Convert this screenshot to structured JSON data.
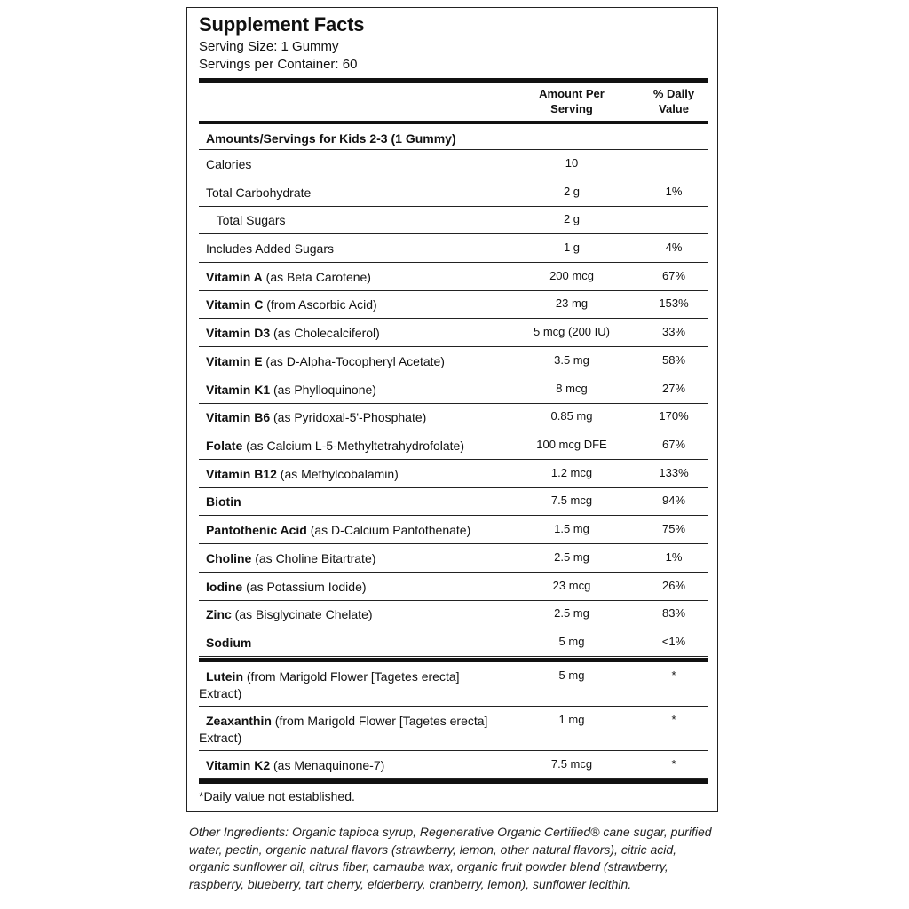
{
  "title": "Supplement Facts",
  "serving_size": "Serving Size: 1 Gummy",
  "servings_per_container": "Servings per Container: 60",
  "header": {
    "amount_line1": "Amount Per",
    "amount_line2": "Serving",
    "dv_line1": "% Daily",
    "dv_line2": "Value"
  },
  "section_heading": "Amounts/Servings for Kids 2-3 (1 Gummy)",
  "rows": [
    {
      "bold": "",
      "name": "Calories",
      "amount": "10",
      "dv": ""
    },
    {
      "bold": "",
      "name": "Total Carbohydrate",
      "amount": "2 g",
      "dv": "1%"
    },
    {
      "bold": "",
      "name": "   Total Sugars",
      "amount": "2 g",
      "dv": ""
    },
    {
      "bold": "",
      "name": "Includes Added Sugars",
      "amount": "1 g",
      "dv": "4%"
    },
    {
      "bold": "Vitamin A",
      "name": " (as Beta Carotene)",
      "amount": "200 mcg",
      "dv": "67%"
    },
    {
      "bold": "Vitamin C",
      "name": " (from Ascorbic Acid)",
      "amount": "23 mg",
      "dv": "153%"
    },
    {
      "bold": "Vitamin D3",
      "name": " (as Cholecalciferol)",
      "amount": "5 mcg (200 IU)",
      "dv": "33%"
    },
    {
      "bold": "Vitamin E",
      "name": " (as D-Alpha-Tocopheryl Acetate)",
      "amount": "3.5 mg",
      "dv": "58%"
    },
    {
      "bold": "Vitamin K1",
      "name": " (as Phylloquinone)",
      "amount": "8 mcg",
      "dv": "27%"
    },
    {
      "bold": "Vitamin B6",
      "name": " (as Pyridoxal-5'-Phosphate)",
      "amount": "0.85 mg",
      "dv": "170%"
    },
    {
      "bold": "Folate",
      "name": " (as Calcium L-5-Methyltetrahydrofolate)",
      "amount": "100 mcg DFE",
      "dv": "67%"
    },
    {
      "bold": "Vitamin B12",
      "name": " (as Methylcobalamin)",
      "amount": "1.2 mcg",
      "dv": "133%"
    },
    {
      "bold": "Biotin",
      "name": "",
      "amount": "7.5 mcg",
      "dv": "94%"
    },
    {
      "bold": "Pantothenic Acid",
      "name": " (as D-Calcium Pantothenate)",
      "amount": "1.5 mg",
      "dv": "75%"
    },
    {
      "bold": "Choline",
      "name": " (as Choline Bitartrate)",
      "amount": "2.5 mg",
      "dv": "1%"
    },
    {
      "bold": "Iodine",
      "name": " (as Potassium Iodide)",
      "amount": "23 mcg",
      "dv": "26%"
    },
    {
      "bold": "Zinc",
      "name": " (as Bisglycinate Chelate)",
      "amount": "2.5 mg",
      "dv": "83%"
    },
    {
      "bold": "Sodium",
      "name": "",
      "amount": "5 mg",
      "dv": "<1%"
    }
  ],
  "other_rows": [
    {
      "bold": "Lutein",
      "name": " (from Marigold Flower [Tagetes erecta] Extract)",
      "amount": "5 mg",
      "dv": "*"
    },
    {
      "bold": "Zeaxanthin",
      "name": " (from Marigold Flower [Tagetes erecta] Extract)",
      "amount": "1 mg",
      "dv": "*"
    },
    {
      "bold": "Vitamin K2",
      "name": " (as Menaquinone-7)",
      "amount": "7.5 mcg",
      "dv": "*"
    }
  ],
  "footnote": "*Daily value not established.",
  "other_ingredients": "Other Ingredients: Organic tapioca syrup, Regenerative Organic Certified® cane sugar, purified water, pectin, organic natural flavors (strawberry, lemon, other natural flavors), citric acid, organic sunflower oil, citrus fiber, carnauba wax, organic fruit powder blend (strawberry, raspberry, blueberry, tart cherry, elderberry, cranberry, lemon), sunflower lecithin."
}
